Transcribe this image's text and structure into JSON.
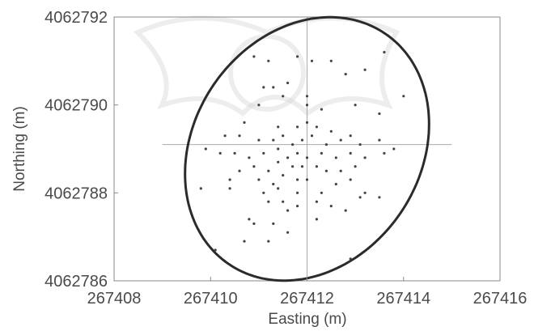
{
  "chart_data": {
    "type": "scatter",
    "title": "",
    "xlabel": "Easting (m)",
    "ylabel": "Northing (m)",
    "xlim": [
      267408,
      267416
    ],
    "ylim": [
      4062786,
      4062792
    ],
    "x_ticks": [
      267408,
      267410,
      267412,
      267414,
      267416
    ],
    "y_ticks": [
      4062786,
      4062788,
      4062790,
      4062792
    ],
    "x_tick_labels": [
      "267408",
      "267410",
      "267412",
      "267414",
      "267416"
    ],
    "y_tick_labels": [
      "4062786",
      "4062788",
      "4062790",
      "4062792"
    ],
    "grid": false,
    "crosshair": {
      "x_center": 267412.0,
      "y_center": 4062789.1,
      "x_range": [
        267409.0,
        267415.0
      ],
      "y_range": [
        4062786.0,
        4062792.0
      ]
    },
    "ellipse": {
      "center_x": 267412.0,
      "center_y": 4062789.0,
      "semi_axis_major_m": 3.1,
      "semi_axis_minor_m": 2.4,
      "rotation_deg": 24,
      "color": "#2b2b2b"
    },
    "colors": {
      "points": "#444444",
      "axis": "#888888",
      "crosshair": "#aaaaaa"
    },
    "points": [
      [
        267410.9,
        4062791.1
      ],
      [
        267411.1,
        4062790.4
      ],
      [
        267411.3,
        4062790.4
      ],
      [
        267411.6,
        4062790.5
      ],
      [
        267411.2,
        4062791.0
      ],
      [
        267411.8,
        4062791.1
      ],
      [
        267412.1,
        4062791.0
      ],
      [
        267412.5,
        4062791.0
      ],
      [
        267413.6,
        4062791.2
      ],
      [
        267413.2,
        4062790.8
      ],
      [
        267412.8,
        4062790.7
      ],
      [
        267414.0,
        4062790.2
      ],
      [
        267411.0,
        4062790.0
      ],
      [
        267411.5,
        4062790.2
      ],
      [
        267412.0,
        4062790.2
      ],
      [
        267412.0,
        4062790.0
      ],
      [
        267412.3,
        4062789.9
      ],
      [
        267413.0,
        4062790.0
      ],
      [
        267413.5,
        4062789.8
      ],
      [
        267410.7,
        4062789.6
      ],
      [
        267411.4,
        4062789.5
      ],
      [
        267411.8,
        4062789.5
      ],
      [
        267412.0,
        4062789.6
      ],
      [
        267412.2,
        4062789.5
      ],
      [
        267412.5,
        4062789.4
      ],
      [
        267412.9,
        4062789.3
      ],
      [
        267410.3,
        4062789.3
      ],
      [
        267410.6,
        4062789.3
      ],
      [
        267411.0,
        4062789.2
      ],
      [
        267411.3,
        4062789.2
      ],
      [
        267411.5,
        4062789.3
      ],
      [
        267411.7,
        4062789.1
      ],
      [
        267411.9,
        4062789.2
      ],
      [
        267412.1,
        4062789.3
      ],
      [
        267412.4,
        4062789.1
      ],
      [
        267412.7,
        4062789.2
      ],
      [
        267413.1,
        4062789.1
      ],
      [
        267413.5,
        4062789.2
      ],
      [
        267413.8,
        4062789.0
      ],
      [
        267409.9,
        4062789.0
      ],
      [
        267410.2,
        4062788.9
      ],
      [
        267410.5,
        4062788.9
      ],
      [
        267410.8,
        4062788.8
      ],
      [
        267411.1,
        4062788.9
      ],
      [
        267411.4,
        4062789.0
      ],
      [
        267411.6,
        4062788.8
      ],
      [
        267411.8,
        4062788.9
      ],
      [
        267412.0,
        4062788.8
      ],
      [
        267412.3,
        4062788.9
      ],
      [
        267412.6,
        4062788.8
      ],
      [
        267412.9,
        4062788.9
      ],
      [
        267413.2,
        4062788.8
      ],
      [
        267413.6,
        4062788.9
      ],
      [
        267410.6,
        4062788.5
      ],
      [
        267410.9,
        4062788.6
      ],
      [
        267411.2,
        4062788.5
      ],
      [
        267411.4,
        4062788.7
      ],
      [
        267411.7,
        4062788.6
      ],
      [
        267411.9,
        4062788.6
      ],
      [
        267412.2,
        4062788.6
      ],
      [
        267412.4,
        4062788.5
      ],
      [
        267412.7,
        4062788.5
      ],
      [
        267413.0,
        4062788.6
      ],
      [
        267410.4,
        4062788.3
      ],
      [
        267411.0,
        4062788.3
      ],
      [
        267411.3,
        4062788.2
      ],
      [
        267411.5,
        4062788.4
      ],
      [
        267411.8,
        4062788.3
      ],
      [
        267412.0,
        4062788.3
      ],
      [
        267412.6,
        4062788.2
      ],
      [
        267412.9,
        4062788.3
      ],
      [
        267409.8,
        4062788.1
      ],
      [
        267410.4,
        4062788.1
      ],
      [
        267411.1,
        4062788.0
      ],
      [
        267411.4,
        4062788.1
      ],
      [
        267411.8,
        4062788.0
      ],
      [
        267412.3,
        4062788.0
      ],
      [
        267413.2,
        4062788.0
      ],
      [
        267413.5,
        4062787.9
      ],
      [
        267411.2,
        4062787.8
      ],
      [
        267411.5,
        4062787.8
      ],
      [
        267411.8,
        4062787.7
      ],
      [
        267412.2,
        4062787.8
      ],
      [
        267413.1,
        4062787.9
      ],
      [
        267411.6,
        4062787.6
      ],
      [
        267412.5,
        4062787.7
      ],
      [
        267410.8,
        4062787.4
      ],
      [
        267411.3,
        4062787.3
      ],
      [
        267412.2,
        4062787.4
      ],
      [
        267412.8,
        4062787.6
      ],
      [
        267411.6,
        4062787.1
      ],
      [
        267410.9,
        4062787.3
      ],
      [
        267410.7,
        4062786.9
      ],
      [
        267410.1,
        4062786.7
      ],
      [
        267411.2,
        4062786.9
      ],
      [
        267412.9,
        4062786.5
      ]
    ]
  }
}
